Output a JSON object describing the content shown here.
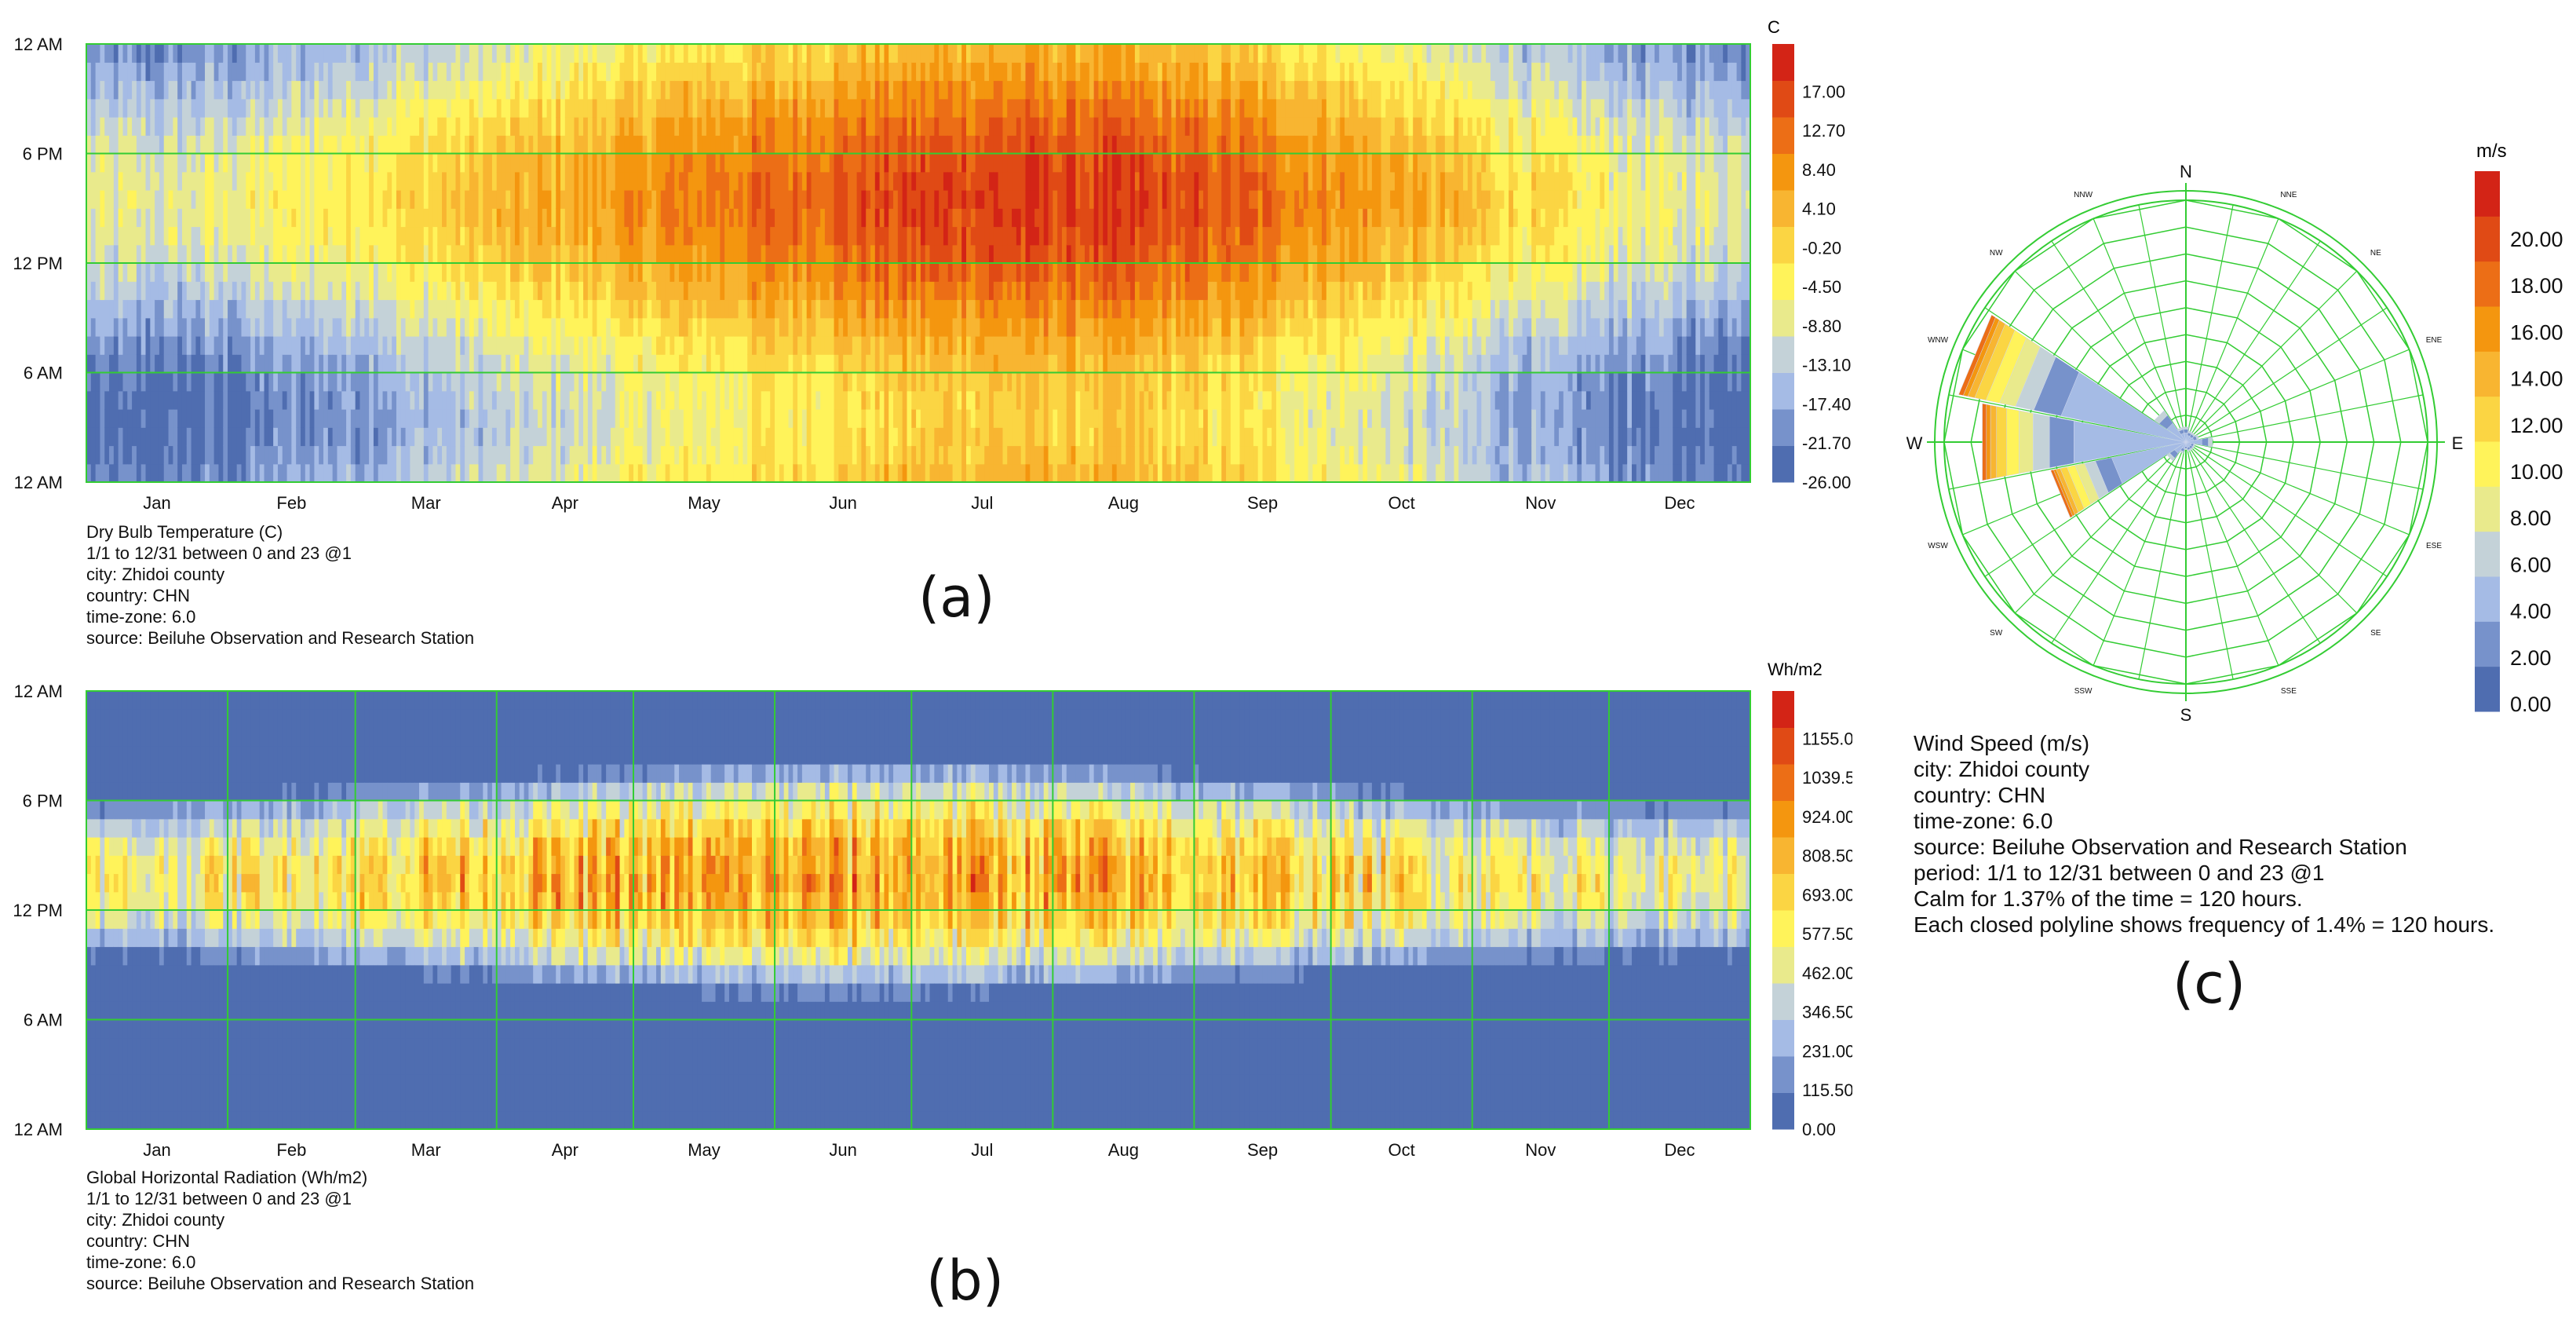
{
  "colors": {
    "grid": "#33cc33",
    "temp_scale": [
      "#4f6db0",
      "#7792cb",
      "#a5bbe5",
      "#c4d2d8",
      "#e9ea8c",
      "#fff35a",
      "#fbd543",
      "#f8b531",
      "#f4960f",
      "#ec6e16",
      "#e04a15",
      "#d32416"
    ],
    "wind_scale": [
      "#4f6db0",
      "#7792cb",
      "#a5bbe5",
      "#c4d2d8",
      "#e9ea8c",
      "#fff35a",
      "#fbd543",
      "#f8b531",
      "#f4960f",
      "#ec6e16",
      "#e04a15",
      "#d32416"
    ]
  },
  "chart_data": [
    {
      "id": "a",
      "type": "heatmap",
      "title": "Dry Bulb Temperature (C)",
      "unit": "C",
      "x_tick_labels": [
        "Jan",
        "Feb",
        "Mar",
        "Apr",
        "May",
        "Jun",
        "Jul",
        "Aug",
        "Sep",
        "Oct",
        "Nov",
        "Dec"
      ],
      "y_tick_labels": [
        "12 AM",
        "6 PM",
        "12 PM",
        "6 AM",
        "12 AM"
      ],
      "legend_values": [
        "17.00",
        "12.70",
        "8.40",
        "4.10",
        "-0.20",
        "-4.50",
        "-8.80",
        "-13.10",
        "-17.40",
        "-21.70",
        "-26.00"
      ],
      "value_range": [
        -26.0,
        21.3
      ],
      "monthly_mean": [
        -17,
        -13,
        -8,
        -3,
        2,
        6,
        9,
        8,
        4,
        -3,
        -11,
        -16
      ],
      "diurnal_amplitude": 8,
      "info": [
        "1/1 to 12/31 between 0 and 23 @1",
        "city: Zhidoi county",
        "country: CHN",
        "time-zone: 6.0",
        "source: Beiluhe Observation and Research Station"
      ],
      "label": "(a)"
    },
    {
      "id": "b",
      "type": "heatmap",
      "title": "Global Horizontal Radiation (Wh/m2)",
      "unit": "Wh/m2",
      "x_tick_labels": [
        "Jan",
        "Feb",
        "Mar",
        "Apr",
        "May",
        "Jun",
        "Jul",
        "Aug",
        "Sep",
        "Oct",
        "Nov",
        "Dec"
      ],
      "y_tick_labels": [
        "12 AM",
        "6 PM",
        "12 PM",
        "6 AM",
        "12 AM"
      ],
      "legend_values": [
        "1155.00",
        "1039.50",
        "924.00",
        "808.50",
        "693.00",
        "577.50",
        "462.00",
        "346.50",
        "231.00",
        "115.50",
        "0.00"
      ],
      "value_range": [
        0,
        1270
      ],
      "peak_by_month": [
        700,
        800,
        920,
        1000,
        1050,
        1080,
        1050,
        1000,
        920,
        820,
        720,
        660
      ],
      "sunrise_hour": [
        9,
        8.5,
        8,
        7.5,
        7,
        6.8,
        7,
        7.3,
        7.8,
        8.3,
        8.8,
        9
      ],
      "sunset_hour": [
        18.5,
        19,
        19.5,
        20,
        20.5,
        20.8,
        20.8,
        20.3,
        19.8,
        19,
        18.5,
        18.3
      ],
      "info": [
        "1/1 to 12/31 between 0 and 23 @1",
        "city: Zhidoi county",
        "country: CHN",
        "time-zone: 6.0",
        "source: Beiluhe Observation and Research Station"
      ],
      "label": "(b)"
    },
    {
      "id": "c",
      "type": "wind-rose",
      "title": "Wind Speed (m/s)",
      "unit": "m/s",
      "directions": [
        "N",
        "NNE",
        "NE",
        "ENE",
        "E",
        "ESE",
        "SE",
        "SSE",
        "S",
        "SSW",
        "SW",
        "WSW",
        "W",
        "WNW",
        "NW",
        "NNW"
      ],
      "legend_values": [
        "20.00",
        "18.00",
        "16.00",
        "14.00",
        "12.00",
        "10.00",
        "8.00",
        "6.00",
        "4.00",
        "2.00",
        "0.00"
      ],
      "frequency_pct": [
        0.8,
        0.6,
        0.6,
        0.7,
        1.4,
        0.5,
        0.5,
        0.5,
        0.4,
        0.6,
        1.2,
        7.2,
        10.8,
        12.1,
        2.0,
        0.8
      ],
      "calm_pct": 1.37,
      "info": [
        "city: Zhidoi county",
        "country: CHN",
        "time-zone: 6.0",
        "source: Beiluhe Observation and Research Station",
        "period: 1/1 to 12/31 between 0 and 23 @1",
        "Calm for 1.37% of the time = 120 hours.",
        "Each closed polyline shows frequency of 1.4% = 120 hours."
      ],
      "label": "(c)"
    }
  ]
}
